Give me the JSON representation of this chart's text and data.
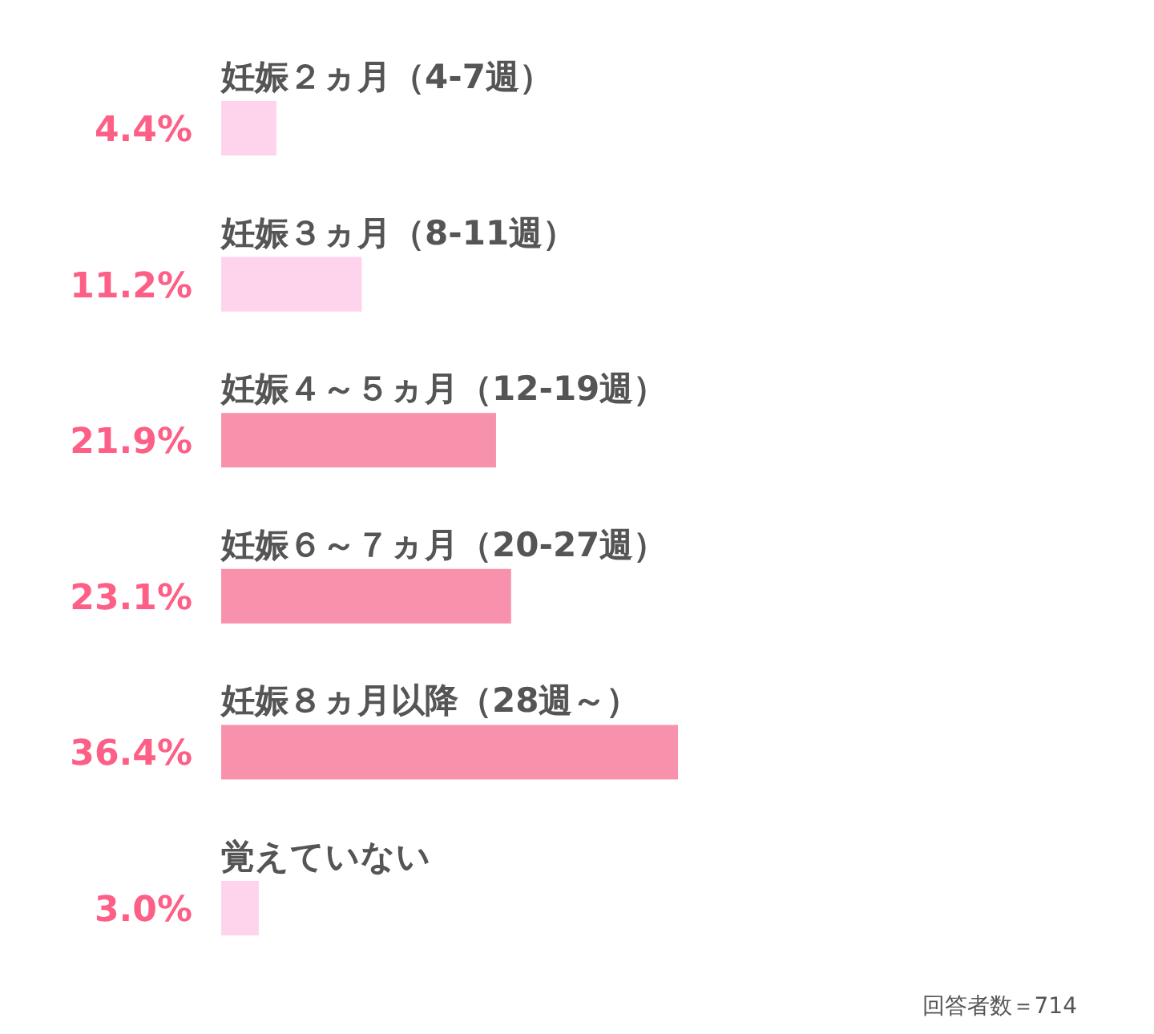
{
  "chart_data": {
    "type": "bar",
    "orientation": "horizontal",
    "categories": [
      "妊娠２ヵ月（4-7週）",
      "妊娠３ヵ月（8-11週）",
      "妊娠４～５ヵ月（12-19週）",
      "妊娠６～７ヵ月（20-27週）",
      "妊娠８ヵ月以降（28週～）",
      "覚えていない"
    ],
    "values": [
      4.4,
      11.2,
      21.9,
      23.1,
      36.4,
      3.0
    ],
    "value_labels": [
      "4.4%",
      "11.2%",
      "21.9%",
      "23.1%",
      "36.4%",
      "3.0%"
    ],
    "colors": [
      "#fed3ec",
      "#fed3ec",
      "#f891ab",
      "#f891ab",
      "#f891ab",
      "#fed3ec"
    ],
    "annotations": [
      "回答者数＝714"
    ]
  }
}
